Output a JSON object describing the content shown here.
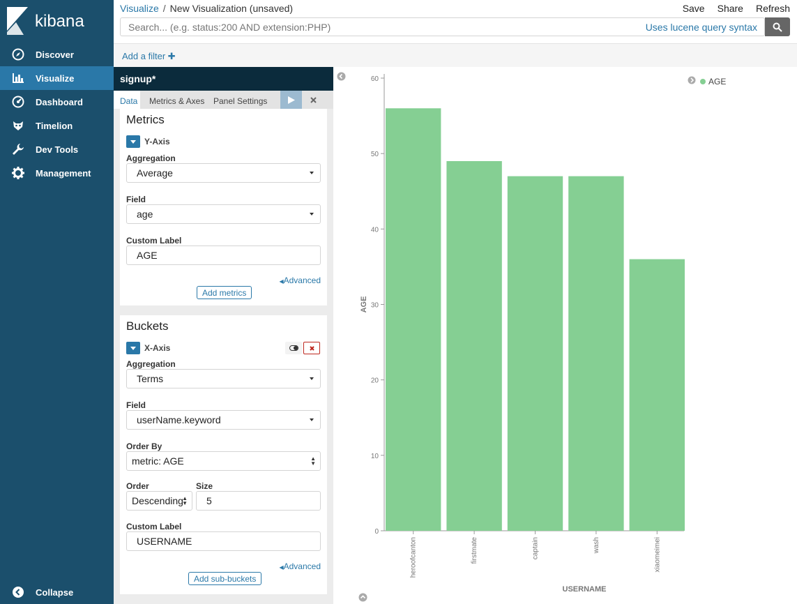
{
  "app": {
    "logo_text": "kibana"
  },
  "sidebar": {
    "items": [
      {
        "label": "Discover",
        "icon": "compass-icon"
      },
      {
        "label": "Visualize",
        "icon": "bar-chart-icon",
        "active": true
      },
      {
        "label": "Dashboard",
        "icon": "dashboard-icon"
      },
      {
        "label": "Timelion",
        "icon": "timelion-icon"
      },
      {
        "label": "Dev Tools",
        "icon": "wrench-icon"
      },
      {
        "label": "Management",
        "icon": "gear-icon"
      }
    ],
    "collapse_label": "Collapse"
  },
  "header": {
    "breadcrumb_link": "Visualize",
    "breadcrumb_sep": "/",
    "breadcrumb_current": "New Visualization (unsaved)",
    "actions": [
      "Save",
      "Share",
      "Refresh"
    ]
  },
  "query": {
    "placeholder": "Search... (e.g. status:200 AND extension:PHP)",
    "value": "",
    "syntax_link": "Uses lucene query syntax"
  },
  "filters": {
    "add_label": "Add a filter"
  },
  "editor": {
    "title": "signup*",
    "tabs": [
      "Data",
      "Metrics & Axes",
      "Panel Settings"
    ],
    "metrics": {
      "heading": "Metrics",
      "agg_name": "Y-Axis",
      "aggregation_label": "Aggregation",
      "aggregation_value": "Average",
      "field_label": "Field",
      "field_value": "age",
      "custom_label_label": "Custom Label",
      "custom_label_value": "AGE",
      "advanced": "Advanced",
      "add_button": "Add metrics"
    },
    "buckets": {
      "heading": "Buckets",
      "agg_name": "X-Axis",
      "aggregation_label": "Aggregation",
      "aggregation_value": "Terms",
      "field_label": "Field",
      "field_value": "userName.keyword",
      "order_by_label": "Order By",
      "order_by_value": "metric: AGE",
      "order_label": "Order",
      "order_value": "Descending",
      "size_label": "Size",
      "size_value": "5",
      "custom_label_label": "Custom Label",
      "custom_label_value": "USERNAME",
      "advanced": "Advanced",
      "add_button": "Add sub-buckets"
    }
  },
  "chart_data": {
    "type": "bar",
    "categories": [
      "heroofcanton",
      "firstmate",
      "captain",
      "wash",
      "xiaomeimei"
    ],
    "series": [
      {
        "name": "AGE",
        "values": [
          56,
          49,
          47,
          47,
          36
        ]
      }
    ],
    "xlabel": "USERNAME",
    "ylabel": "AGE",
    "ylim": [
      0,
      60
    ],
    "yticks": [
      0,
      10,
      20,
      30,
      40,
      50,
      60
    ],
    "legend": "top-right",
    "grid": false,
    "bar_color": "#85cf93"
  },
  "colors": {
    "sidebar": "#1b4f6c",
    "accent": "#2a78a8",
    "title_bar": "#0b2b3c"
  }
}
